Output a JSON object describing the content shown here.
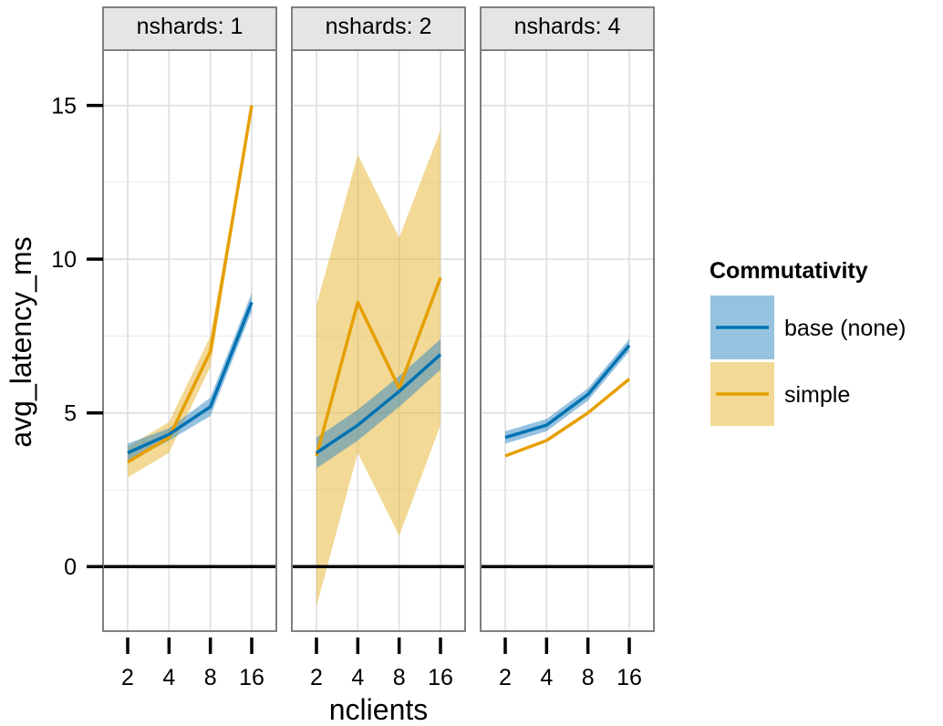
{
  "chart_data": {
    "type": "line",
    "facet_variable": "nshards",
    "panels": [
      {
        "strip_label": "nshards: 1",
        "series": [
          {
            "name": "base (none)",
            "mean": [
              3.7,
              4.3,
              5.2,
              8.6
            ],
            "lower": [
              3.4,
              4.1,
              4.9,
              8.3
            ],
            "upper": [
              4.0,
              4.5,
              5.5,
              8.9
            ]
          },
          {
            "name": "simple",
            "mean": [
              3.4,
              4.2,
              7.0,
              15.0
            ],
            "lower": [
              2.9,
              3.7,
              6.5,
              14.9
            ],
            "upper": [
              3.9,
              4.7,
              7.5,
              15.1
            ]
          }
        ]
      },
      {
        "strip_label": "nshards: 2",
        "series": [
          {
            "name": "base (none)",
            "mean": [
              3.7,
              4.6,
              5.7,
              6.9
            ],
            "lower": [
              3.2,
              4.1,
              5.2,
              6.4
            ],
            "upper": [
              4.2,
              5.1,
              6.2,
              7.4
            ]
          },
          {
            "name": "simple",
            "mean": [
              3.6,
              8.6,
              5.8,
              9.4
            ],
            "lower": [
              -1.3,
              3.7,
              1.0,
              4.6
            ],
            "upper": [
              8.5,
              13.4,
              10.7,
              14.2
            ]
          }
        ]
      },
      {
        "strip_label": "nshards: 4",
        "series": [
          {
            "name": "base (none)",
            "mean": [
              4.2,
              4.6,
              5.6,
              7.2
            ],
            "lower": [
              4.0,
              4.4,
              5.4,
              7.0
            ],
            "upper": [
              4.4,
              4.8,
              5.8,
              7.4
            ]
          },
          {
            "name": "simple",
            "mean": [
              3.6,
              4.1,
              5.0,
              6.1
            ],
            "lower": [
              3.55,
              4.05,
              4.95,
              6.05
            ],
            "upper": [
              3.65,
              4.15,
              5.05,
              6.15
            ]
          }
        ]
      }
    ],
    "x": [
      2,
      4,
      8,
      16
    ],
    "x_scale": "log2",
    "x_tick_labels": [
      "2",
      "4",
      "8",
      "16"
    ],
    "y_ticks": [
      0,
      5,
      10,
      15
    ],
    "y_tick_labels": [
      "0",
      "5",
      "10",
      "15"
    ],
    "ylim": [
      -2.1,
      16.8
    ],
    "reference_line_y": 0,
    "xlabel": "nclients",
    "ylabel": "avg_latency_ms",
    "legend": {
      "title": "Commutativity",
      "position": "right",
      "entries": [
        "base (none)",
        "simple"
      ]
    },
    "colors": {
      "base (none)": "#0072B2",
      "simple": "#E69F00",
      "band_base": "#2E86C1",
      "band_simple": "#E8B940",
      "strip_fill": "#E5E5E5",
      "panel_border": "#808080",
      "grid": "#DEDEDE",
      "reference_line": "#000000"
    },
    "grid": true
  }
}
